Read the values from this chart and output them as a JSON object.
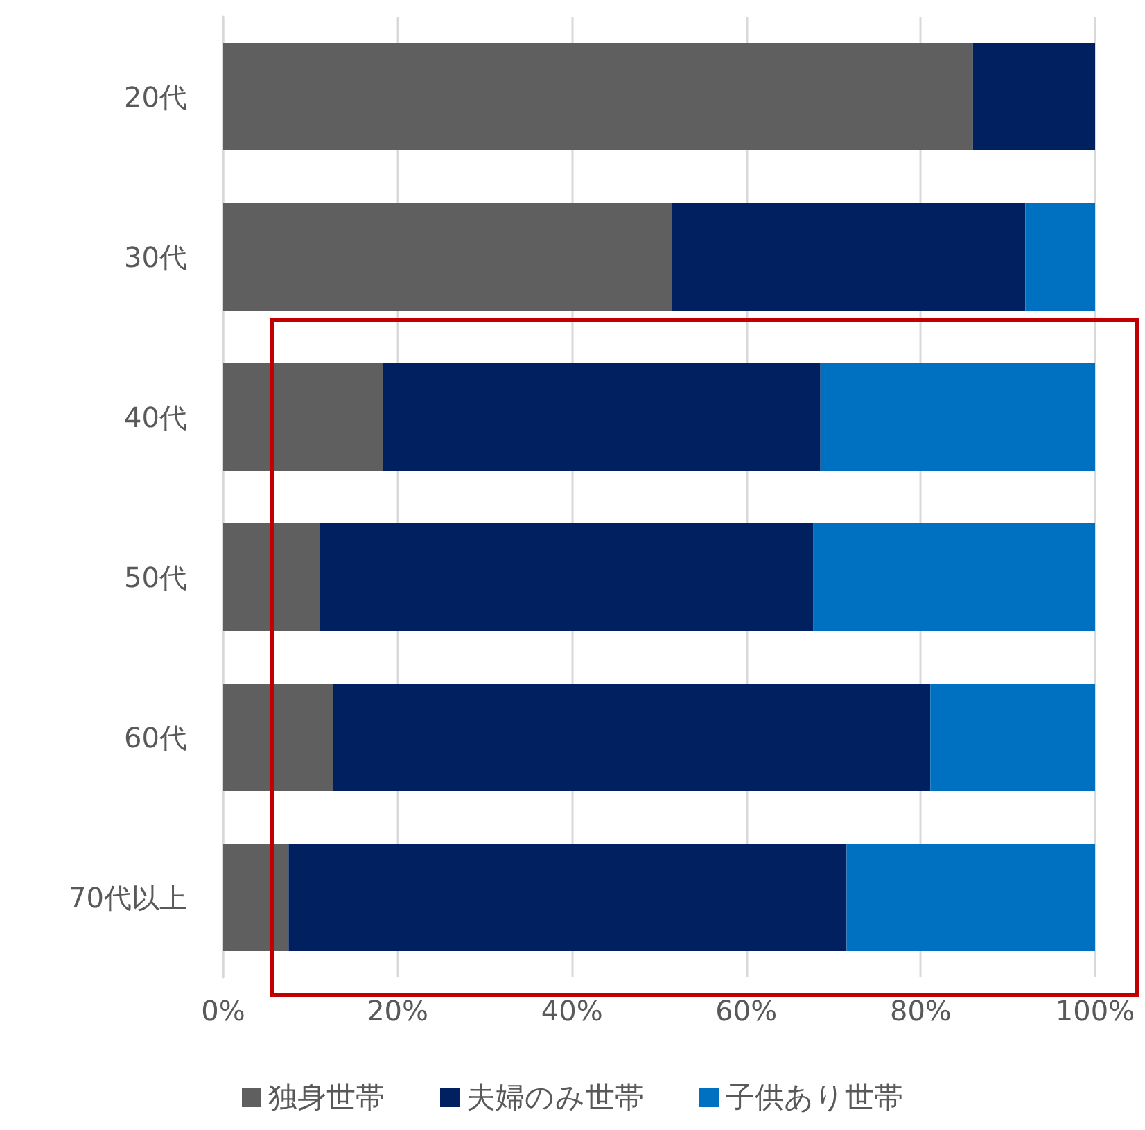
{
  "chart_data": {
    "type": "bar",
    "orientation": "horizontal",
    "stacked": true,
    "categories": [
      "20代",
      "30代",
      "40代",
      "50代",
      "60代",
      "70代以上"
    ],
    "series": [
      {
        "name": "独身世帯",
        "color": "#5f5f5f",
        "values": [
          86,
          51.5,
          18.3,
          11.1,
          12.6,
          7.5
        ]
      },
      {
        "name": "夫婦のみ世帯",
        "color": "#002060",
        "values": [
          14,
          40.5,
          50.2,
          56.6,
          68.5,
          64
        ]
      },
      {
        "name": "子供あり世帯",
        "color": "#0070c0",
        "values": [
          0,
          8,
          31.5,
          32.3,
          18.9,
          28.5
        ]
      }
    ],
    "xlim": [
      0,
      100
    ],
    "xticks": [
      {
        "value": 0,
        "label": "0%"
      },
      {
        "value": 20,
        "label": "20%"
      },
      {
        "value": 40,
        "label": "40%"
      },
      {
        "value": 60,
        "label": "60%"
      },
      {
        "value": 80,
        "label": "80%"
      },
      {
        "value": 100,
        "label": "100%"
      }
    ],
    "grid": "x",
    "legend": "bottom"
  }
}
